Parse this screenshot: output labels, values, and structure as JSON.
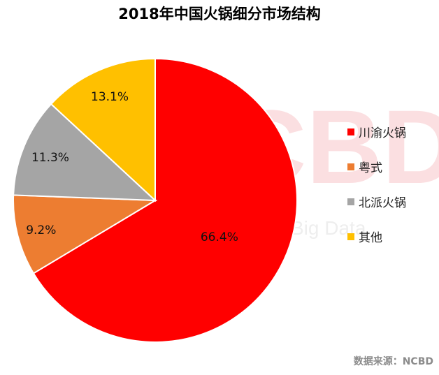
{
  "chart_data": {
    "type": "pie",
    "title": "2018年中国火锅细分市场结构",
    "categories": [
      "川渝火锅",
      "粤式",
      "北派火锅",
      "其他"
    ],
    "values": [
      66.4,
      9.2,
      11.3,
      13.1
    ],
    "labels": [
      "66.4%",
      "9.2%",
      "11.3%",
      "13.1%"
    ],
    "colors": [
      "#FF0000",
      "#ED7D31",
      "#A5A5A5",
      "#FFC000"
    ],
    "legend_position": "right",
    "start_angle": "top, clockwise"
  },
  "watermark": {
    "logo": "NCBD",
    "text": "Big Data"
  },
  "source": "数据来源：NCBD"
}
